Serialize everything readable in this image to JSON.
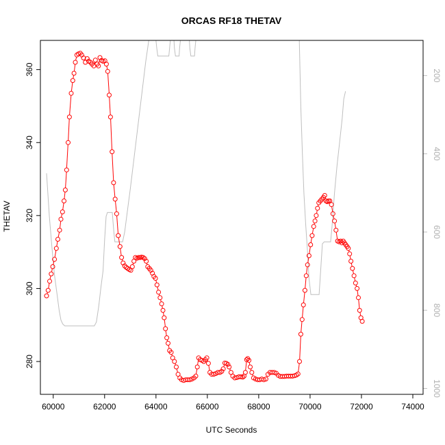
{
  "chart_data": {
    "type": "line",
    "title": "ORCAS RF18 THETAV",
    "xlabel": "UTC Seconds",
    "ylabel": "THETAV",
    "xlim": [
      59500,
      74400
    ],
    "ylim": [
      271,
      368
    ],
    "x_ticks": [
      60000,
      62000,
      64000,
      66000,
      68000,
      70000,
      72000,
      74000
    ],
    "y_ticks": [
      280,
      300,
      320,
      340,
      360
    ],
    "y2_ticks": [
      200,
      400,
      600,
      800,
      1000
    ],
    "y2_axis": {
      "side": "right",
      "reversed": true,
      "range": [
        1015,
        110
      ],
      "color": "#bebebe"
    },
    "grid": false,
    "legend": "none",
    "series": [
      {
        "color": "#ff0000",
        "marker": "circle-open",
        "points": [
          [
            59740,
            298
          ],
          [
            59800,
            299.5
          ],
          [
            59860,
            302
          ],
          [
            59920,
            304
          ],
          [
            59980,
            306
          ],
          [
            60050,
            308
          ],
          [
            60120,
            311
          ],
          [
            60180,
            313.5
          ],
          [
            60250,
            316
          ],
          [
            60300,
            319
          ],
          [
            60360,
            321
          ],
          [
            60420,
            324
          ],
          [
            60470,
            327
          ],
          [
            60520,
            332.5
          ],
          [
            60580,
            340
          ],
          [
            60630,
            347
          ],
          [
            60700,
            353.5
          ],
          [
            60760,
            357
          ],
          [
            60810,
            359
          ],
          [
            60860,
            362
          ],
          [
            60920,
            364
          ],
          [
            60980,
            364.3
          ],
          [
            61050,
            364.5
          ],
          [
            61110,
            364
          ],
          [
            61180,
            363.2
          ],
          [
            61250,
            362
          ],
          [
            61320,
            363
          ],
          [
            61380,
            362.3
          ],
          [
            61450,
            362
          ],
          [
            61510,
            361.5
          ],
          [
            61580,
            361
          ],
          [
            61640,
            362.6
          ],
          [
            61710,
            361.5
          ],
          [
            61760,
            361
          ],
          [
            61820,
            363.3
          ],
          [
            61880,
            362.5
          ],
          [
            61940,
            362.3
          ],
          [
            62010,
            362.4
          ],
          [
            62070,
            361.5
          ],
          [
            62120,
            359.5
          ],
          [
            62180,
            353
          ],
          [
            62230,
            347
          ],
          [
            62290,
            337.5
          ],
          [
            62350,
            329
          ],
          [
            62410,
            324.5
          ],
          [
            62470,
            320.5
          ],
          [
            62530,
            314.5
          ],
          [
            62600,
            311.5
          ],
          [
            62660,
            308.5
          ],
          [
            62720,
            307
          ],
          [
            62780,
            306.2
          ],
          [
            62840,
            305.8
          ],
          [
            62900,
            305.5
          ],
          [
            62960,
            305.2
          ],
          [
            63020,
            305
          ],
          [
            63080,
            306
          ],
          [
            63140,
            307.5
          ],
          [
            63200,
            308.5
          ],
          [
            63260,
            308.3
          ],
          [
            63320,
            308.5
          ],
          [
            63380,
            308.5
          ],
          [
            63440,
            308.6
          ],
          [
            63500,
            308.5
          ],
          [
            63560,
            308.2
          ],
          [
            63620,
            307.5
          ],
          [
            63680,
            306
          ],
          [
            63740,
            305.5
          ],
          [
            63800,
            305
          ],
          [
            63860,
            304.2
          ],
          [
            63920,
            303.3
          ],
          [
            63980,
            302.8
          ],
          [
            64040,
            301
          ],
          [
            64100,
            299
          ],
          [
            64160,
            297.5
          ],
          [
            64220,
            295.8
          ],
          [
            64270,
            294
          ],
          [
            64320,
            292
          ],
          [
            64370,
            289
          ],
          [
            64420,
            286.5
          ],
          [
            64470,
            285
          ],
          [
            64530,
            283
          ],
          [
            64590,
            282.5
          ],
          [
            64650,
            281
          ],
          [
            64720,
            280
          ],
          [
            64790,
            278.5
          ],
          [
            64860,
            276.5
          ],
          [
            64930,
            275.5
          ],
          [
            65000,
            275
          ],
          [
            65080,
            274.8
          ],
          [
            65160,
            275
          ],
          [
            65240,
            275
          ],
          [
            65320,
            275
          ],
          [
            65400,
            275.2
          ],
          [
            65480,
            275.5
          ],
          [
            65550,
            276
          ],
          [
            65610,
            278.5
          ],
          [
            65660,
            281
          ],
          [
            65720,
            280.5
          ],
          [
            65790,
            280.3
          ],
          [
            65860,
            280
          ],
          [
            65920,
            280.5
          ],
          [
            65980,
            281
          ],
          [
            66040,
            279.5
          ],
          [
            66100,
            277
          ],
          [
            66170,
            276.5
          ],
          [
            66250,
            276.5
          ],
          [
            66330,
            276.7
          ],
          [
            66410,
            277
          ],
          [
            66490,
            277
          ],
          [
            66560,
            277.3
          ],
          [
            66620,
            278
          ],
          [
            66680,
            279.6
          ],
          [
            66740,
            279.5
          ],
          [
            66800,
            279.2
          ],
          [
            66850,
            278.5
          ],
          [
            66920,
            277
          ],
          [
            66990,
            276
          ],
          [
            67070,
            275.5
          ],
          [
            67150,
            275.6
          ],
          [
            67230,
            275.8
          ],
          [
            67310,
            275.8
          ],
          [
            67380,
            275.7
          ],
          [
            67430,
            276
          ],
          [
            67480,
            277
          ],
          [
            67530,
            280.5
          ],
          [
            67570,
            280.8
          ],
          [
            67620,
            280.3
          ],
          [
            67670,
            278.5
          ],
          [
            67730,
            277
          ],
          [
            67800,
            275.5
          ],
          [
            67880,
            275.2
          ],
          [
            67960,
            275
          ],
          [
            68040,
            275
          ],
          [
            68120,
            275.2
          ],
          [
            68200,
            275
          ],
          [
            68280,
            275.2
          ],
          [
            68360,
            276.5
          ],
          [
            68440,
            277
          ],
          [
            68520,
            277
          ],
          [
            68600,
            277
          ],
          [
            68680,
            276.8
          ],
          [
            68760,
            276.2
          ],
          [
            68840,
            275.9
          ],
          [
            68920,
            275.9
          ],
          [
            69000,
            275.9
          ],
          [
            69080,
            276
          ],
          [
            69160,
            276
          ],
          [
            69240,
            276
          ],
          [
            69320,
            276
          ],
          [
            69400,
            276.1
          ],
          [
            69470,
            276.3
          ],
          [
            69530,
            276.6
          ],
          [
            69590,
            280
          ],
          [
            69640,
            287.5
          ],
          [
            69690,
            291.5
          ],
          [
            69740,
            295.5
          ],
          [
            69800,
            299.5
          ],
          [
            69850,
            303.5
          ],
          [
            69900,
            306.5
          ],
          [
            69960,
            309
          ],
          [
            70020,
            312
          ],
          [
            70080,
            314.5
          ],
          [
            70140,
            317
          ],
          [
            70190,
            318.5
          ],
          [
            70240,
            320
          ],
          [
            70290,
            322
          ],
          [
            70340,
            323.5
          ],
          [
            70400,
            324
          ],
          [
            70460,
            324.5
          ],
          [
            70520,
            325
          ],
          [
            70570,
            325.5
          ],
          [
            70620,
            324
          ],
          [
            70670,
            323.8
          ],
          [
            70720,
            324
          ],
          [
            70770,
            324
          ],
          [
            70830,
            323
          ],
          [
            70890,
            320.5
          ],
          [
            70950,
            318.5
          ],
          [
            71010,
            316
          ],
          [
            71070,
            313
          ],
          [
            71130,
            312.8
          ],
          [
            71190,
            313
          ],
          [
            71240,
            312.5
          ],
          [
            71290,
            313
          ],
          [
            71340,
            312.5
          ],
          [
            71390,
            312
          ],
          [
            71440,
            311.5
          ],
          [
            71490,
            311
          ],
          [
            71540,
            309.5
          ],
          [
            71590,
            307.5
          ],
          [
            71650,
            305.5
          ],
          [
            71710,
            303.5
          ],
          [
            71770,
            301.5
          ],
          [
            71830,
            300
          ],
          [
            71880,
            297.5
          ],
          [
            71930,
            294
          ],
          [
            71980,
            292
          ],
          [
            72030,
            291
          ]
        ]
      },
      {
        "color": "#bebebe",
        "axis": "right",
        "marker": "none",
        "points": [
          [
            59740,
            450
          ],
          [
            59850,
            560
          ],
          [
            59950,
            640
          ],
          [
            60050,
            710
          ],
          [
            60150,
            760
          ],
          [
            60230,
            800
          ],
          [
            60300,
            825
          ],
          [
            60370,
            835
          ],
          [
            60450,
            840
          ],
          [
            60600,
            840
          ],
          [
            61000,
            840
          ],
          [
            61400,
            840
          ],
          [
            61600,
            840
          ],
          [
            61680,
            830
          ],
          [
            61770,
            790
          ],
          [
            61860,
            740
          ],
          [
            61940,
            700
          ],
          [
            62000,
            620
          ],
          [
            62060,
            560
          ],
          [
            62110,
            550
          ],
          [
            62300,
            550
          ],
          [
            62360,
            600
          ],
          [
            62400,
            625
          ],
          [
            62500,
            625
          ],
          [
            62600,
            625
          ],
          [
            62700,
            625
          ],
          [
            62780,
            600
          ],
          [
            62880,
            550
          ],
          [
            63000,
            490
          ],
          [
            63120,
            425
          ],
          [
            63240,
            360
          ],
          [
            63360,
            295
          ],
          [
            63480,
            230
          ],
          [
            63600,
            165
          ],
          [
            63720,
            110
          ],
          [
            64000,
            110
          ],
          [
            64030,
            130
          ],
          [
            64070,
            150
          ],
          [
            64500,
            150
          ],
          [
            64530,
            130
          ],
          [
            64560,
            110
          ],
          [
            64700,
            110
          ],
          [
            64720,
            130
          ],
          [
            64760,
            150
          ],
          [
            64900,
            150
          ],
          [
            64920,
            130
          ],
          [
            64950,
            110
          ],
          [
            65300,
            110
          ],
          [
            65320,
            130
          ],
          [
            65360,
            150
          ],
          [
            65500,
            150
          ],
          [
            65520,
            130
          ],
          [
            65550,
            110
          ],
          [
            69580,
            110
          ],
          [
            69640,
            280
          ],
          [
            69700,
            400
          ],
          [
            69760,
            500
          ],
          [
            69830,
            580
          ],
          [
            69900,
            650
          ],
          [
            69960,
            720
          ],
          [
            70030,
            760
          ],
          [
            70100,
            760
          ],
          [
            70300,
            760
          ],
          [
            70350,
            760
          ],
          [
            70420,
            690
          ],
          [
            70480,
            630
          ],
          [
            70550,
            625
          ],
          [
            70750,
            625
          ],
          [
            70800,
            625
          ],
          [
            70850,
            590
          ],
          [
            70950,
            500
          ],
          [
            71050,
            430
          ],
          [
            71150,
            370
          ],
          [
            71250,
            310
          ],
          [
            71310,
            260
          ],
          [
            71380,
            240
          ]
        ]
      }
    ]
  }
}
